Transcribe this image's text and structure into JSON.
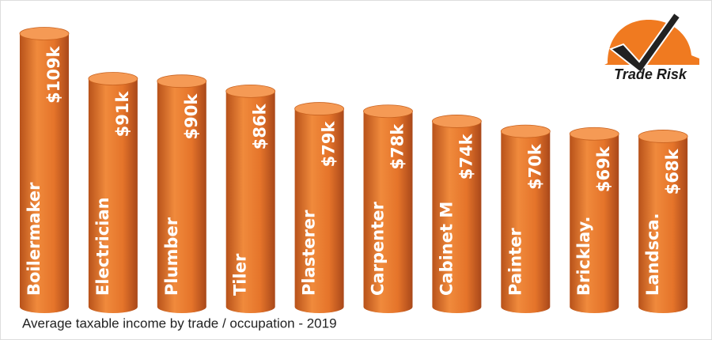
{
  "chart_data": {
    "type": "bar",
    "title": "Average taxable income by trade / occupation - 2019",
    "brand": "Trade Risk",
    "categories": [
      "Boilermaker",
      "Electrician",
      "Plumber",
      "Tiler",
      "Plasterer",
      "Carpenter",
      "Cabinet M",
      "Painter",
      "Bricklay.",
      "Landsca."
    ],
    "values": [
      109,
      91,
      90,
      86,
      79,
      78,
      74,
      70,
      69,
      68
    ],
    "value_labels": [
      "$109k",
      "$91k",
      "$90k",
      "$86k",
      "$79k",
      "$78k",
      "$74k",
      "$70k",
      "$69k",
      "$68k"
    ],
    "color": "#e8772e"
  }
}
